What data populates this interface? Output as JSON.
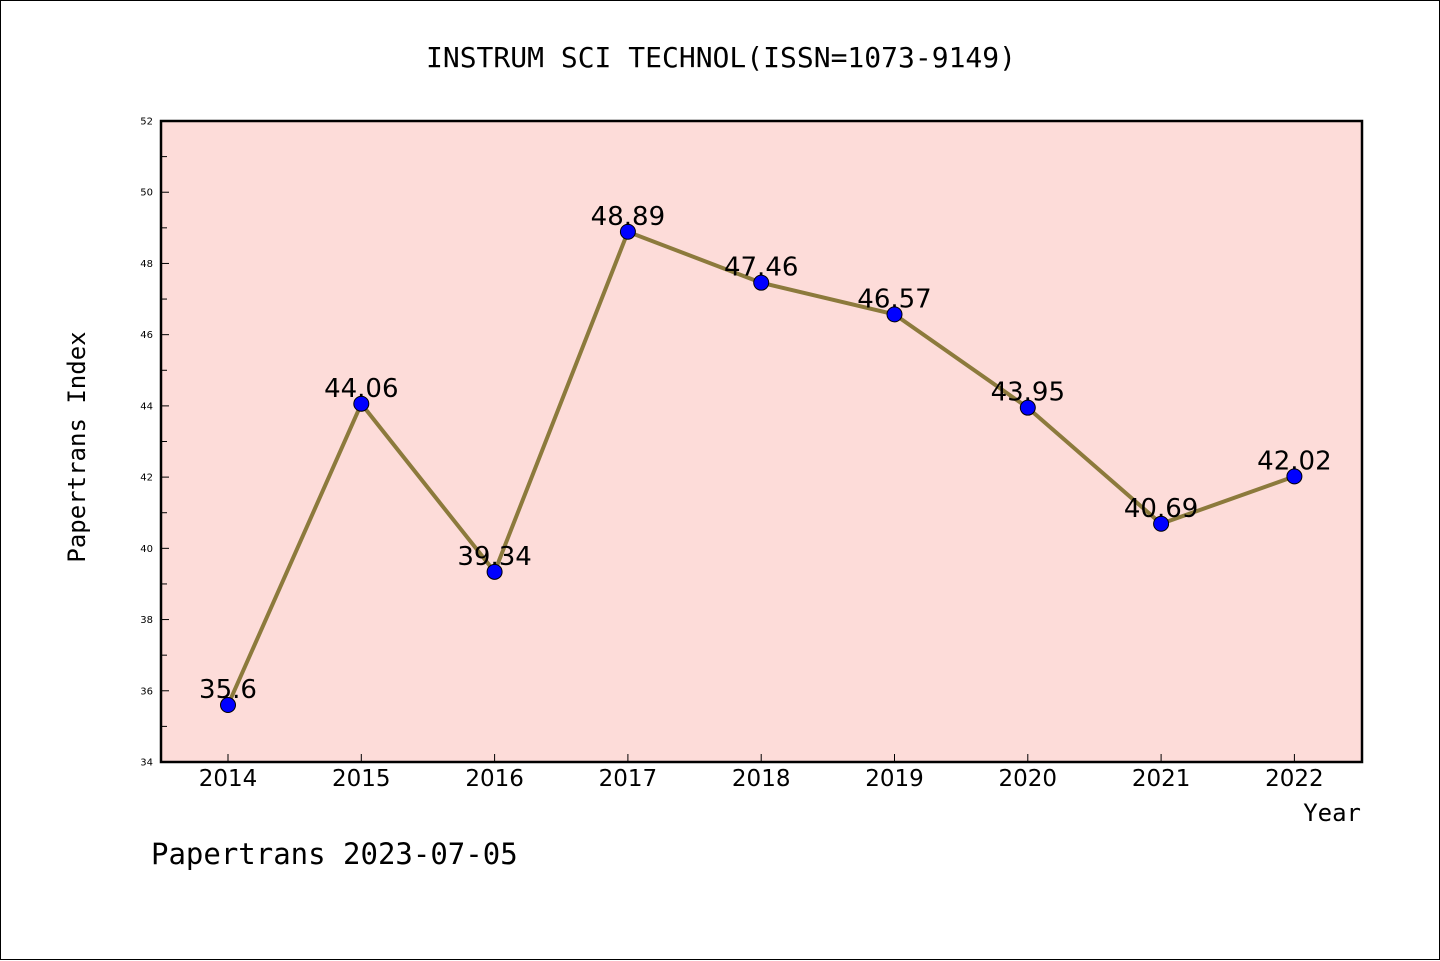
{
  "chart_data": {
    "type": "line",
    "title": "INSTRUM SCI TECHNOL(ISSN=1073-9149)",
    "xlabel": "Year",
    "ylabel": "Papertrans Index",
    "categories": [
      "2014",
      "2015",
      "2016",
      "2017",
      "2018",
      "2019",
      "2020",
      "2021",
      "2022"
    ],
    "series": [
      {
        "values": [
          35.6,
          44.06,
          39.34,
          48.89,
          47.46,
          46.57,
          43.95,
          40.69,
          42.02
        ],
        "labels": [
          "35.6",
          "44.06",
          "39.34",
          "48.89",
          "47.46",
          "46.57",
          "43.95",
          "40.69",
          "42.02"
        ]
      }
    ],
    "ylim": [
      34,
      52
    ],
    "y_ticks": [
      "34",
      "36",
      "38",
      "40",
      "42",
      "44",
      "46",
      "48",
      "50",
      "52"
    ],
    "grid": false,
    "legend": "none",
    "colors": {
      "plot_background": "#fddcd9",
      "line": "#8c7a3c",
      "marker": "#0000ff",
      "axis": "#000000"
    }
  },
  "footer": {
    "watermark": "Papertrans 2023-07-05"
  }
}
